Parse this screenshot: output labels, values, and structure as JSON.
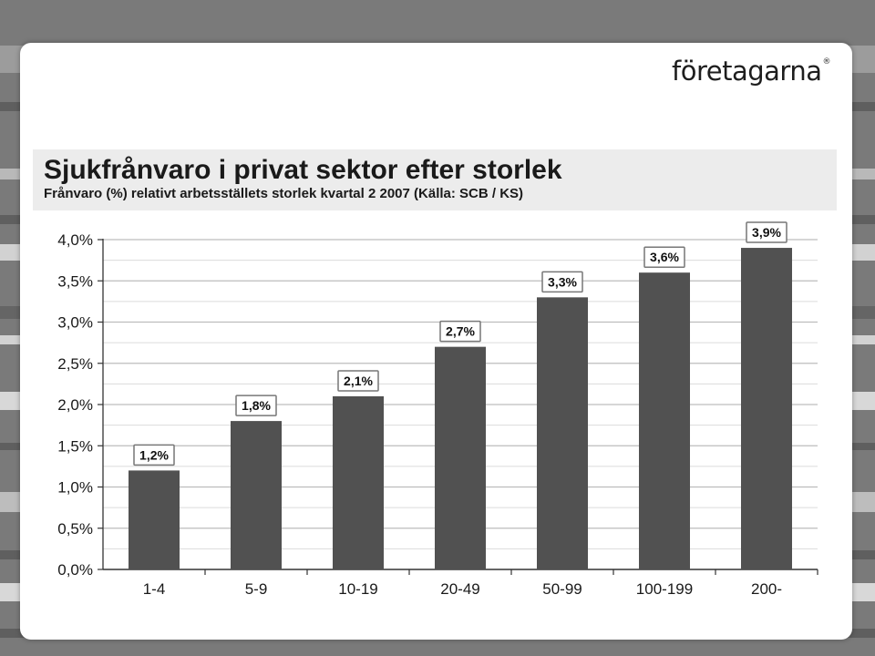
{
  "logo": {
    "text": "företagarna",
    "mark": "®"
  },
  "chart_data": {
    "type": "bar",
    "title": "Sjukfrånvaro i privat sektor efter storlek",
    "subtitle": "Frånvaro (%) relativt arbetsställets storlek kvartal 2 2007 (Källa: SCB / KS)",
    "categories": [
      "1-4",
      "5-9",
      "10-19",
      "20-49",
      "50-99",
      "100-199",
      "200-"
    ],
    "values": [
      1.2,
      1.8,
      2.1,
      2.7,
      3.3,
      3.6,
      3.9
    ],
    "data_labels": [
      "1,2%",
      "1,8%",
      "2,1%",
      "2,7%",
      "3,3%",
      "3,6%",
      "3,9%"
    ],
    "y_ticks": [
      "0,0%",
      "0,5%",
      "1,0%",
      "1,5%",
      "2,0%",
      "2,5%",
      "3,0%",
      "3,5%",
      "4,0%"
    ],
    "ylim": [
      0,
      4.0
    ],
    "xlabel": "",
    "ylabel": "",
    "grid": true,
    "bar_color": "#515151"
  }
}
